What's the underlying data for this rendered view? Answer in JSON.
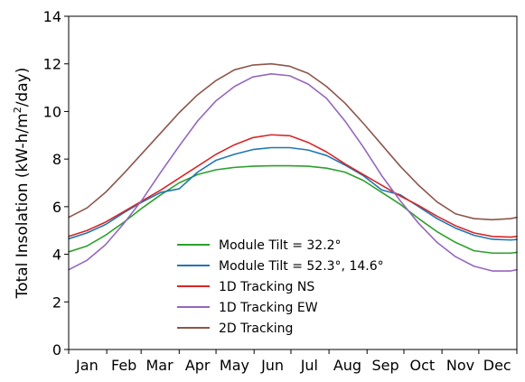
{
  "chart_data": {
    "type": "line",
    "ylabel_main": "Total Insolation (kW-h/m",
    "ylabel_sup": "2",
    "ylabel_tail": "/day)",
    "xlabel": "",
    "ylim": [
      0,
      14
    ],
    "yticks": [
      0,
      2,
      4,
      6,
      8,
      10,
      12,
      14
    ],
    "xlim": [
      0,
      365
    ],
    "month_ticks": [
      0,
      31,
      59,
      90,
      120,
      151,
      181,
      212,
      243,
      273,
      304,
      334,
      365
    ],
    "month_labels": [
      "Jan",
      "Feb",
      "Mar",
      "Apr",
      "May",
      "Jun",
      "Jul",
      "Aug",
      "Sep",
      "Oct",
      "Nov",
      "Dec"
    ],
    "month_label_days": [
      15,
      45,
      74,
      105,
      135,
      166,
      196,
      227,
      258,
      288,
      319,
      349
    ],
    "legend_position": "lower center",
    "series": [
      {
        "name": "Module Tilt = 32.2°",
        "color": "#2ca02c",
        "x": [
          0,
          15,
          30,
          45,
          60,
          75,
          90,
          105,
          120,
          135,
          150,
          165,
          180,
          195,
          210,
          225,
          240,
          255,
          270,
          285,
          300,
          315,
          330,
          345,
          360,
          365
        ],
        "y": [
          4.1,
          4.35,
          4.8,
          5.35,
          5.95,
          6.5,
          7.0,
          7.35,
          7.55,
          7.65,
          7.7,
          7.72,
          7.72,
          7.7,
          7.62,
          7.45,
          7.1,
          6.6,
          6.1,
          5.5,
          4.95,
          4.5,
          4.15,
          4.05,
          4.05,
          4.08
        ]
      },
      {
        "name": "Module Tilt = 52.3°, 14.6°",
        "color": "#1f77b4",
        "x": [
          0,
          15,
          30,
          45,
          60,
          75,
          90,
          105,
          120,
          135,
          150,
          165,
          180,
          195,
          210,
          225,
          240,
          255,
          270,
          285,
          300,
          315,
          330,
          345,
          360,
          365
        ],
        "y": [
          4.65,
          4.9,
          5.25,
          5.75,
          6.2,
          6.6,
          6.75,
          7.45,
          7.95,
          8.2,
          8.4,
          8.48,
          8.48,
          8.38,
          8.15,
          7.75,
          7.3,
          6.7,
          6.5,
          6.0,
          5.5,
          5.1,
          4.8,
          4.63,
          4.6,
          4.62
        ]
      },
      {
        "name": "1D Tracking NS",
        "color": "#d62728",
        "x": [
          0,
          15,
          30,
          45,
          60,
          75,
          90,
          105,
          120,
          135,
          150,
          165,
          180,
          195,
          210,
          225,
          240,
          255,
          270,
          285,
          300,
          315,
          330,
          345,
          360,
          365
        ],
        "y": [
          4.75,
          5.0,
          5.35,
          5.8,
          6.25,
          6.7,
          7.2,
          7.7,
          8.2,
          8.6,
          8.9,
          9.02,
          8.98,
          8.7,
          8.3,
          7.8,
          7.35,
          6.9,
          6.45,
          6.05,
          5.6,
          5.2,
          4.9,
          4.75,
          4.72,
          4.75
        ]
      },
      {
        "name": "1D Tracking EW",
        "color": "#9467bd",
        "x": [
          0,
          15,
          30,
          45,
          60,
          75,
          90,
          105,
          120,
          135,
          150,
          165,
          180,
          195,
          210,
          225,
          240,
          255,
          270,
          285,
          300,
          315,
          330,
          345,
          360,
          365
        ],
        "y": [
          3.35,
          3.75,
          4.4,
          5.3,
          6.3,
          7.45,
          8.55,
          9.6,
          10.45,
          11.05,
          11.45,
          11.58,
          11.5,
          11.15,
          10.55,
          9.6,
          8.5,
          7.3,
          6.25,
          5.3,
          4.5,
          3.9,
          3.5,
          3.3,
          3.3,
          3.35
        ]
      },
      {
        "name": "2D Tracking",
        "color": "#8c564b",
        "x": [
          0,
          15,
          30,
          45,
          60,
          75,
          90,
          105,
          120,
          135,
          150,
          165,
          180,
          195,
          210,
          225,
          240,
          255,
          270,
          285,
          300,
          315,
          330,
          345,
          360,
          365
        ],
        "y": [
          5.55,
          5.95,
          6.6,
          7.4,
          8.25,
          9.1,
          9.95,
          10.7,
          11.3,
          11.75,
          11.95,
          12.0,
          11.9,
          11.6,
          11.05,
          10.35,
          9.5,
          8.6,
          7.7,
          6.9,
          6.2,
          5.7,
          5.5,
          5.45,
          5.5,
          5.55
        ]
      }
    ]
  }
}
